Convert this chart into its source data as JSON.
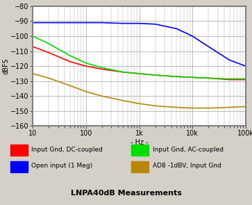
{
  "title": "LNPA40dB Measurements",
  "ylabel": "dBFS",
  "xlabel": "- Hz -",
  "xlim": [
    10,
    100000
  ],
  "ylim": [
    -160,
    -80
  ],
  "yticks": [
    -160,
    -150,
    -140,
    -130,
    -120,
    -110,
    -100,
    -90,
    -80
  ],
  "bg_color": "#d4d0c8",
  "plot_bg_color": "#ffffff",
  "grid_color": "#a0a0a0",
  "series": [
    {
      "key": "red",
      "label": "Input Gnd, DC-coupled",
      "color": "#ff0000",
      "points": [
        [
          10,
          -107
        ],
        [
          20,
          -111
        ],
        [
          50,
          -117
        ],
        [
          100,
          -120
        ],
        [
          200,
          -122
        ],
        [
          500,
          -124
        ],
        [
          1000,
          -125
        ],
        [
          2000,
          -126
        ],
        [
          5000,
          -127
        ],
        [
          10000,
          -127.5
        ],
        [
          20000,
          -128
        ],
        [
          50000,
          -129
        ],
        [
          100000,
          -129
        ]
      ]
    },
    {
      "key": "green",
      "label": "Input Gnd, AC-coupled",
      "color": "#00dd00",
      "points": [
        [
          10,
          -100
        ],
        [
          20,
          -105
        ],
        [
          50,
          -113
        ],
        [
          100,
          -118
        ],
        [
          200,
          -121
        ],
        [
          500,
          -124
        ],
        [
          1000,
          -125
        ],
        [
          2000,
          -126
        ],
        [
          5000,
          -127
        ],
        [
          10000,
          -127.5
        ],
        [
          20000,
          -128
        ],
        [
          50000,
          -128.5
        ],
        [
          100000,
          -128.5
        ]
      ]
    },
    {
      "key": "blue",
      "label": "Open input (1 Meg)",
      "color": "#0000ff",
      "points": [
        [
          10,
          -91
        ],
        [
          20,
          -91
        ],
        [
          50,
          -91
        ],
        [
          100,
          -91
        ],
        [
          200,
          -91
        ],
        [
          500,
          -91.5
        ],
        [
          1000,
          -91.5
        ],
        [
          2000,
          -92
        ],
        [
          5000,
          -95
        ],
        [
          10000,
          -100
        ],
        [
          20000,
          -107
        ],
        [
          50000,
          -116
        ],
        [
          100000,
          -120
        ]
      ]
    },
    {
      "key": "gold",
      "label": "AD8 -1dBV, Input Gnd",
      "color": "#b8860b",
      "points": [
        [
          10,
          -125
        ],
        [
          20,
          -128
        ],
        [
          50,
          -133
        ],
        [
          100,
          -137
        ],
        [
          200,
          -140
        ],
        [
          500,
          -143
        ],
        [
          1000,
          -145
        ],
        [
          2000,
          -146.5
        ],
        [
          5000,
          -147.5
        ],
        [
          10000,
          -148
        ],
        [
          20000,
          -148
        ],
        [
          50000,
          -147.5
        ],
        [
          100000,
          -147
        ]
      ]
    }
  ],
  "legend_col1": [
    {
      "label": "Input Gnd, DC-coupled",
      "color": "#ff0000"
    },
    {
      "label": "Open input (1 Meg)",
      "color": "#0000ff"
    }
  ],
  "legend_col2": [
    {
      "label": "Input Gnd, AC-coupled",
      "color": "#00dd00"
    },
    {
      "label": "AD8 -1dBV, Input Gnd",
      "color": "#b8860b"
    }
  ]
}
